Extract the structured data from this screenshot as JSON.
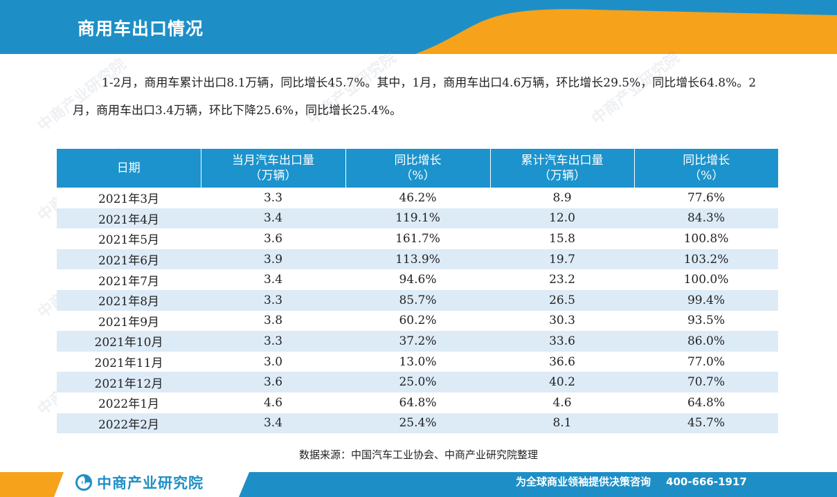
{
  "header": {
    "title": "商用车出口情况"
  },
  "intro": {
    "text": "1-2月，商用车累计出口8.1万辆，同比增长45.7%。其中，1月，商用车出口4.6万辆，环比增长29.5%，同比增长64.8%。2月，商用车出口3.4万辆，环比下降25.6%，同比增长25.4%。"
  },
  "table": {
    "headers": [
      {
        "line1": "日期",
        "line2": ""
      },
      {
        "line1": "当月汽车出口量",
        "line2": "（万辆）"
      },
      {
        "line1": "同比增长",
        "line2": "（%）"
      },
      {
        "line1": "累计汽车出口量",
        "line2": "（万辆）"
      },
      {
        "line1": "同比增长",
        "line2": "（%）"
      }
    ],
    "rows": [
      [
        "2021年3月",
        "3.3",
        "46.2%",
        "8.9",
        "77.6%"
      ],
      [
        "2021年4月",
        "3.4",
        "119.1%",
        "12.0",
        "84.3%"
      ],
      [
        "2021年5月",
        "3.6",
        "161.7%",
        "15.8",
        "100.8%"
      ],
      [
        "2021年6月",
        "3.9",
        "113.9%",
        "19.7",
        "103.2%"
      ],
      [
        "2021年7月",
        "3.4",
        "94.6%",
        "23.2",
        "100.0%"
      ],
      [
        "2021年8月",
        "3.3",
        "85.7%",
        "26.5",
        "99.4%"
      ],
      [
        "2021年9月",
        "3.8",
        "60.2%",
        "30.3",
        "93.5%"
      ],
      [
        "2021年10月",
        "3.3",
        "37.2%",
        "33.6",
        "86.0%"
      ],
      [
        "2021年11月",
        "3.0",
        "13.0%",
        "36.6",
        "77.0%"
      ],
      [
        "2021年12月",
        "3.6",
        "25.0%",
        "40.2",
        "70.7%"
      ],
      [
        "2022年1月",
        "4.6",
        "64.8%",
        "4.6",
        "64.8%"
      ],
      [
        "2022年2月",
        "3.4",
        "25.4%",
        "8.1",
        "45.7%"
      ]
    ]
  },
  "source": "数据来源：中国汽车工业协会、中商产业研究院整理",
  "footer": {
    "logo_text": "中商产业研究院",
    "slogan": "为全球商业领袖提供决策咨询",
    "phone": "400-666-1917"
  },
  "watermark": {
    "text": "中商产业研究院",
    "url": "www.askci.com/reports"
  },
  "colors": {
    "header_blue": "#1e8fc6",
    "accent_orange": "#f7a21b",
    "table_header": "#1c93cc",
    "row_stripe": "#ddebf7"
  }
}
